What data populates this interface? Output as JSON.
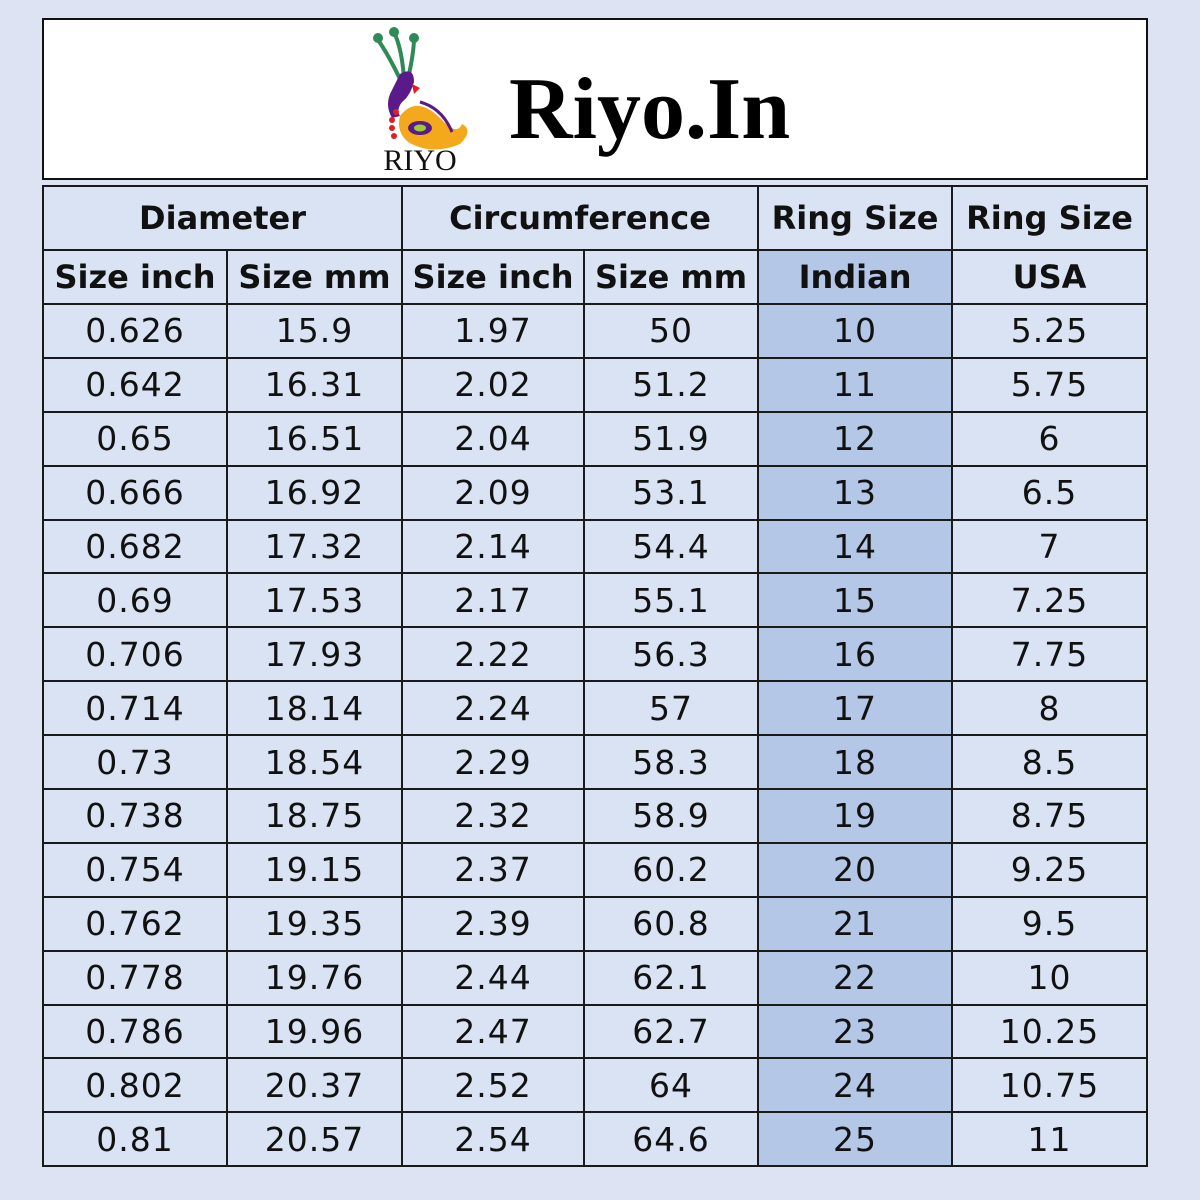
{
  "brand": {
    "title": "Riyo.In",
    "logo_text": "RIYO",
    "colors": {
      "background": "#dde3f3",
      "cell": "#dae3f3",
      "highlight": "#b4c7e7"
    }
  },
  "table": {
    "group_headers": [
      "Diameter",
      "Circumference",
      "Ring Size",
      "Ring Size"
    ],
    "sub_headers": [
      "Size inch",
      "Size mm",
      "Size inch",
      "Size mm",
      "Indian",
      "USA"
    ],
    "rows": [
      [
        "0.626",
        "15.9",
        "1.97",
        "50",
        "10",
        "5.25"
      ],
      [
        "0.642",
        "16.31",
        "2.02",
        "51.2",
        "11",
        "5.75"
      ],
      [
        "0.65",
        "16.51",
        "2.04",
        "51.9",
        "12",
        "6"
      ],
      [
        "0.666",
        "16.92",
        "2.09",
        "53.1",
        "13",
        "6.5"
      ],
      [
        "0.682",
        "17.32",
        "2.14",
        "54.4",
        "14",
        "7"
      ],
      [
        "0.69",
        "17.53",
        "2.17",
        "55.1",
        "15",
        "7.25"
      ],
      [
        "0.706",
        "17.93",
        "2.22",
        "56.3",
        "16",
        "7.75"
      ],
      [
        "0.714",
        "18.14",
        "2.24",
        "57",
        "17",
        "8"
      ],
      [
        "0.73",
        "18.54",
        "2.29",
        "58.3",
        "18",
        "8.5"
      ],
      [
        "0.738",
        "18.75",
        "2.32",
        "58.9",
        "19",
        "8.75"
      ],
      [
        "0.754",
        "19.15",
        "2.37",
        "60.2",
        "20",
        "9.25"
      ],
      [
        "0.762",
        "19.35",
        "2.39",
        "60.8",
        "21",
        "9.5"
      ],
      [
        "0.778",
        "19.76",
        "2.44",
        "62.1",
        "22",
        "10"
      ],
      [
        "0.786",
        "19.96",
        "2.47",
        "62.7",
        "23",
        "10.25"
      ],
      [
        "0.802",
        "20.37",
        "2.52",
        "64",
        "24",
        "10.75"
      ],
      [
        "0.81",
        "20.57",
        "2.54",
        "64.6",
        "25",
        "11"
      ]
    ]
  }
}
